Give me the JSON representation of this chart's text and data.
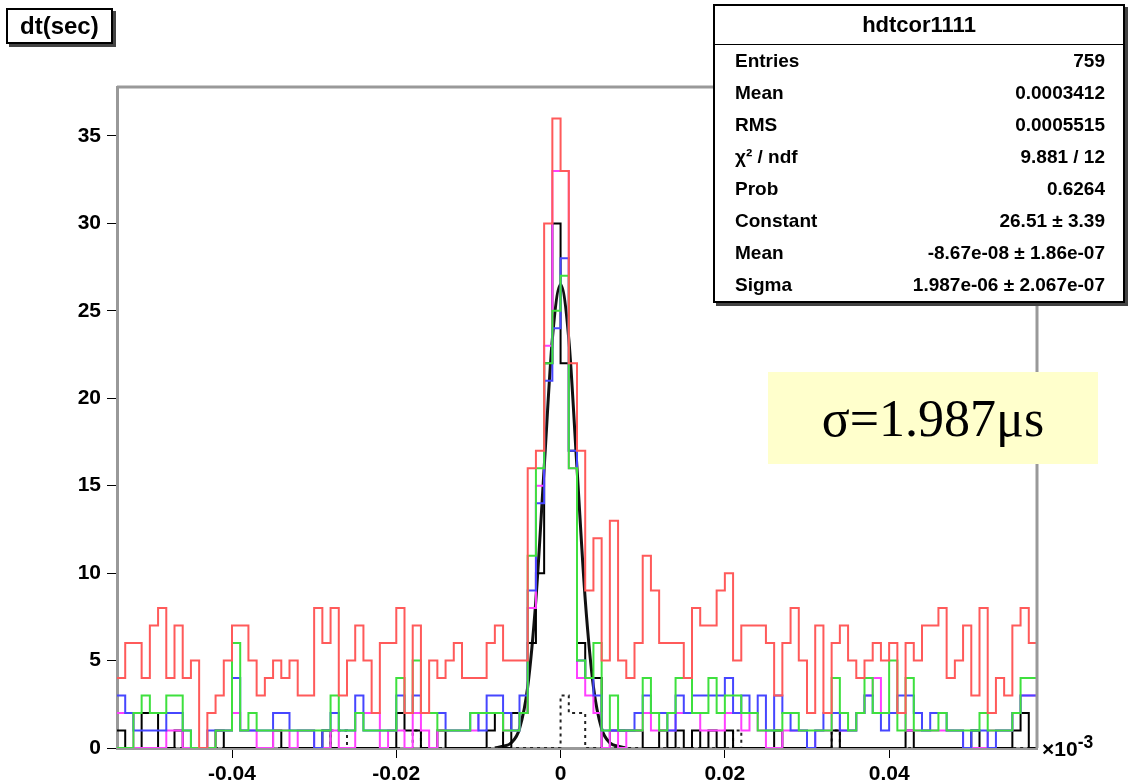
{
  "chart_data": {
    "type": "histogram",
    "title": "dt(sec)",
    "xlabel": "×10$^{-3}$",
    "bins": [
      -0.054,
      -0.053,
      -0.052,
      -0.051,
      -0.05,
      -0.049,
      -0.048,
      -0.047,
      -0.046,
      -0.045,
      -0.044,
      -0.043,
      -0.042,
      -0.041,
      -0.04,
      -0.039,
      -0.038,
      -0.037,
      -0.036,
      -0.035,
      -0.034,
      -0.033,
      -0.032,
      -0.031,
      -0.03,
      -0.029,
      -0.028,
      -0.027,
      -0.026,
      -0.025,
      -0.024,
      -0.023,
      -0.022,
      -0.021,
      -0.02,
      -0.019,
      -0.018,
      -0.017,
      -0.016,
      -0.015,
      -0.014,
      -0.013,
      -0.012,
      -0.011,
      -0.01,
      -0.009,
      -0.008,
      -0.007,
      -0.006,
      -0.005,
      -0.004,
      -0.003,
      -0.002,
      -0.001,
      0,
      0.001,
      0.002,
      0.003,
      0.004,
      0.005,
      0.006,
      0.007,
      0.008,
      0.009,
      0.01,
      0.011,
      0.012,
      0.013,
      0.014,
      0.015,
      0.016,
      0.017,
      0.018,
      0.019,
      0.02,
      0.021,
      0.022,
      0.023,
      0.024,
      0.025,
      0.026,
      0.027,
      0.028,
      0.029,
      0.03,
      0.031,
      0.032,
      0.033,
      0.034,
      0.035,
      0.036,
      0.037,
      0.038,
      0.039,
      0.04,
      0.041,
      0.042,
      0.043,
      0.044,
      0.045,
      0.046,
      0.047,
      0.048,
      0.049,
      0.05,
      0.051,
      0.052,
      0.053,
      0.054,
      0.055,
      0.056,
      0.057,
      0.058
    ],
    "series": [
      {
        "color": "#ff5a5a",
        "values": [
          4,
          6,
          6,
          4,
          7,
          8,
          4,
          7,
          4,
          5,
          0,
          2,
          3,
          5,
          7,
          7,
          5,
          3,
          4,
          5,
          4,
          5,
          3,
          3,
          8,
          6,
          8,
          3,
          5,
          7,
          5,
          2,
          6,
          6,
          8,
          2,
          7,
          2,
          5,
          4,
          5,
          6,
          4,
          4,
          4,
          6,
          7,
          5,
          5,
          5,
          16,
          17,
          30,
          36,
          33,
          22,
          17,
          9,
          12,
          5,
          13,
          5,
          4,
          6,
          11,
          9,
          6,
          6,
          6,
          4,
          8,
          7,
          7,
          9,
          10,
          5,
          7,
          7,
          7,
          6,
          3,
          6,
          8,
          5,
          2,
          7,
          2,
          6,
          7,
          5,
          4,
          5,
          6,
          5,
          6,
          2,
          6,
          5,
          7,
          7,
          8,
          4,
          5,
          7,
          3,
          8,
          2,
          4,
          3,
          7,
          8,
          6
        ]
      },
      {
        "color": "#3ee03e",
        "values": [
          0,
          0,
          2,
          3,
          2,
          2,
          3,
          3,
          1,
          0,
          0,
          0,
          1,
          1,
          6,
          1,
          2,
          1,
          1,
          1,
          1,
          1,
          1,
          1,
          1,
          1,
          3,
          1,
          1,
          2,
          1,
          1,
          1,
          1,
          4,
          2,
          5,
          2,
          2,
          1,
          1,
          1,
          1,
          2,
          2,
          2,
          2,
          1,
          1,
          2,
          11,
          16,
          22,
          25,
          27,
          16,
          5,
          4,
          6,
          1,
          3,
          1,
          1,
          1,
          4,
          2,
          1,
          2,
          4,
          4,
          2,
          2,
          4,
          2,
          3,
          3,
          2,
          2,
          1,
          1,
          1,
          2,
          2,
          1,
          1,
          1,
          1,
          4,
          2,
          1,
          2,
          4,
          2,
          2,
          5,
          1,
          4,
          1,
          1,
          1,
          2,
          1,
          1,
          1,
          1,
          2,
          1,
          1,
          1,
          2,
          4,
          4
        ]
      },
      {
        "color": "#4646ff",
        "values": [
          3,
          2,
          1,
          1,
          1,
          1,
          2,
          2,
          1,
          0,
          0,
          1,
          1,
          1,
          4,
          1,
          1,
          1,
          1,
          2,
          2,
          1,
          1,
          1,
          0,
          1,
          2,
          1,
          1,
          3,
          1,
          1,
          1,
          1,
          3,
          2,
          3,
          2,
          2,
          2,
          1,
          1,
          1,
          2,
          1,
          3,
          3,
          2,
          1,
          3,
          9,
          14,
          21,
          24,
          28,
          17,
          5,
          4,
          3,
          1,
          1,
          1,
          1,
          2,
          3,
          2,
          2,
          1,
          3,
          2,
          3,
          3,
          3,
          3,
          4,
          2,
          3,
          2,
          3,
          1,
          3,
          2,
          1,
          1,
          0,
          1,
          2,
          2,
          1,
          1,
          2,
          3,
          2,
          1,
          2,
          3,
          3,
          2,
          1,
          2,
          2,
          1,
          1,
          0,
          1,
          1,
          0,
          1,
          1,
          2,
          3,
          3
        ]
      },
      {
        "color": "#ff40ff",
        "values": [
          2,
          2,
          0,
          0,
          0,
          0,
          1,
          1,
          0,
          0,
          0,
          0,
          1,
          1,
          2,
          1,
          1,
          0,
          0,
          1,
          1,
          0,
          1,
          1,
          0,
          0,
          1,
          0,
          0,
          2,
          2,
          2,
          0,
          1,
          1,
          0,
          2,
          1,
          0,
          1,
          1,
          1,
          1,
          1,
          2,
          2,
          2,
          1,
          1,
          2,
          8,
          15,
          23,
          33,
          33,
          16,
          4,
          3,
          2,
          0,
          1,
          0,
          1,
          1,
          2,
          1,
          1,
          1,
          2,
          2,
          2,
          1,
          1,
          1,
          2,
          2,
          1,
          2,
          1,
          0,
          0,
          1,
          1,
          1,
          0,
          1,
          1,
          2,
          1,
          1,
          2,
          3,
          4,
          2,
          2,
          2,
          1,
          1,
          1,
          1,
          1,
          1,
          1,
          0,
          0,
          0,
          1,
          1,
          1,
          2,
          3,
          3
        ]
      },
      {
        "color": "#000000",
        "values": [
          1,
          0,
          0,
          2,
          2,
          0,
          0,
          1,
          0,
          0,
          0,
          0,
          1,
          0,
          0,
          0,
          0,
          0,
          0,
          1,
          0,
          0,
          0,
          0,
          0,
          1,
          0,
          0,
          0,
          0,
          0,
          0,
          0,
          0,
          2,
          1,
          1,
          0,
          0,
          1,
          0,
          0,
          0,
          0,
          0,
          1,
          2,
          0,
          2,
          2,
          6,
          10,
          22,
          30,
          22,
          17,
          6,
          4,
          4,
          0,
          1,
          1,
          1,
          1,
          0,
          0,
          1,
          0,
          1,
          0,
          1,
          0,
          1,
          0,
          1,
          0,
          0,
          0,
          0,
          0,
          1,
          0,
          0,
          0,
          0,
          0,
          0,
          1,
          0,
          0,
          0,
          0,
          0,
          0,
          0,
          0,
          1,
          0,
          0,
          0,
          0,
          0,
          0,
          0,
          1,
          0,
          0,
          0,
          0,
          1,
          2,
          0
        ]
      },
      {
        "color": "#222222",
        "line_style": "dotted",
        "values": [
          0,
          0,
          0,
          0,
          0,
          0,
          0,
          0,
          0,
          0,
          0,
          0,
          0,
          0,
          0,
          0,
          0,
          0,
          0,
          0,
          0,
          0,
          0,
          0,
          0,
          0,
          1,
          1,
          0,
          0,
          0,
          0,
          0,
          0,
          0,
          0,
          1,
          0,
          0,
          0,
          0,
          0,
          0,
          0,
          0,
          0,
          0,
          0,
          0,
          0,
          0,
          0,
          0,
          0,
          3,
          2,
          2,
          0,
          0,
          0,
          0,
          0,
          0,
          0,
          0,
          0,
          0,
          0,
          0,
          0,
          0,
          0,
          0,
          0,
          0,
          1,
          0,
          0,
          0,
          0,
          0,
          0,
          0,
          0,
          0,
          0,
          0,
          1,
          0,
          0,
          0,
          0,
          0,
          0,
          0,
          0,
          0,
          0,
          0,
          0,
          0,
          0,
          0,
          0,
          0,
          0,
          0,
          0,
          0,
          0,
          0,
          0
        ]
      },
      {
        "type": "line",
        "color": "#111111",
        "x": [
          -0.008,
          -0.007,
          -0.006,
          -0.005,
          -0.004,
          -0.003,
          -0.002,
          -0.001,
          0,
          0.001,
          0.002,
          0.003,
          0.004,
          0.005,
          0.006,
          0.007,
          0.008
        ],
        "values": [
          0,
          0.1,
          0.3,
          1.1,
          3.5,
          8.5,
          16,
          23.4,
          26.5,
          23.4,
          16,
          8.5,
          3.5,
          1.1,
          0.3,
          0.1,
          0
        ]
      }
    ],
    "xlim": [
      -0.054,
      0.058
    ],
    "xticks": [
      -0.04,
      -0.02,
      0,
      0.02,
      0.04
    ],
    "ylim": [
      0,
      37.8
    ],
    "yticks": [
      0,
      5,
      10,
      15,
      20,
      25,
      30,
      35
    ],
    "grid": false,
    "legend": false,
    "annotations": [
      "hdtcor1111",
      "Entries\t759",
      "Mean\t0.0003412",
      "RMS\t0.0005515",
      "χ² / ndf\t9.881 / 12",
      "Prob\t0.6264",
      "Constant\t26.51 ± 3.39",
      "Mean\t-8.67e-08 ± 1.86e-07",
      "Sigma\t1.987e-06 ± 2.067e-07",
      "σ=1.987μs"
    ]
  }
}
